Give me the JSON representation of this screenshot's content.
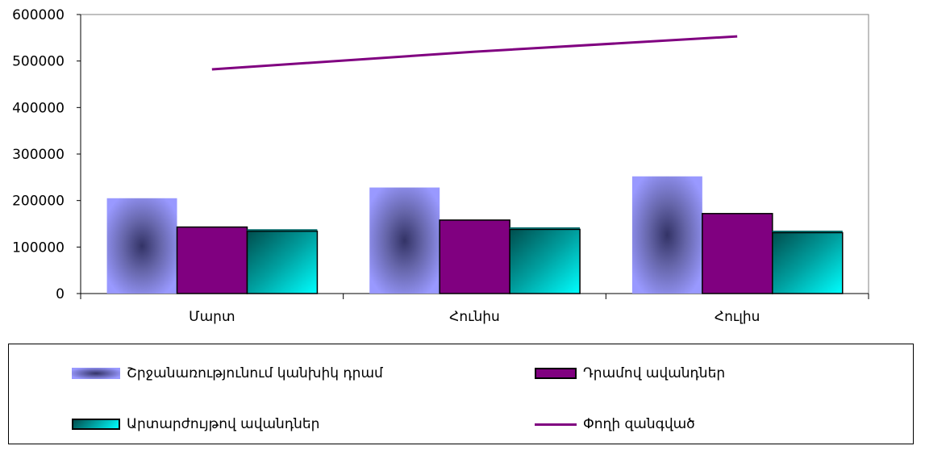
{
  "chart_data": {
    "type": "bar",
    "categories": [
      "Մարտ",
      "Հունիս",
      "Հուլիս"
    ],
    "ylim": [
      0,
      600000
    ],
    "yticks": [
      0,
      100000,
      200000,
      300000,
      400000,
      500000,
      600000
    ],
    "series": [
      {
        "name": "Շրջանառությունում կանխիկ դրամ",
        "type": "bar",
        "values": [
          205000,
          228000,
          252000
        ],
        "color": "#9999ff"
      },
      {
        "name": "Դրամով ավանդներ",
        "type": "bar",
        "values": [
          143000,
          158000,
          172000
        ],
        "color": "#800080"
      },
      {
        "name": "Արտարժույթով ավանդներ",
        "type": "bar",
        "values": [
          134000,
          138000,
          131000
        ],
        "color": "#00b3b3"
      },
      {
        "name": "Փողի զանգված",
        "type": "line",
        "values": [
          482000,
          520000,
          553000
        ],
        "color": "#800080"
      }
    ],
    "grid": false,
    "legend_position": "bottom"
  }
}
